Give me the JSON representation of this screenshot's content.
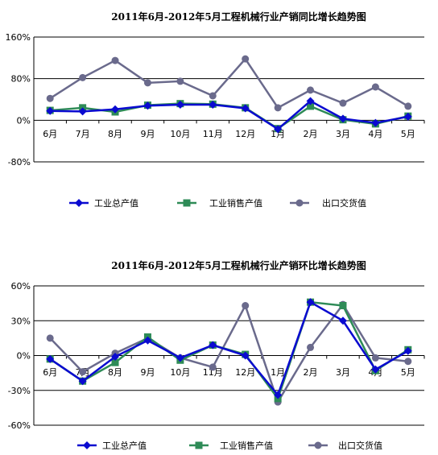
{
  "chart_data": [
    {
      "type": "line",
      "title": "2011年6月-2012年5月工程机械行业产销同比增长趋势图",
      "categories": [
        "6月",
        "7月",
        "8月",
        "9月",
        "10月",
        "11月",
        "12月",
        "1月",
        "2月",
        "3月",
        "4月",
        "5月"
      ],
      "ylim": [
        -80,
        160
      ],
      "yticks": [
        -80,
        0,
        80,
        160
      ],
      "ytick_labels": [
        "-80%",
        "0%",
        "80%",
        "160%"
      ],
      "grid": "horizontal",
      "legend_position": "bottom",
      "series": [
        {
          "name": "工业总产值",
          "color": "#0a0ad0",
          "marker": "diamond",
          "values": [
            18,
            17,
            21,
            28,
            30,
            30,
            23,
            -17,
            37,
            3,
            -5,
            7
          ]
        },
        {
          "name": "工业销售产值",
          "color": "#2e8b57",
          "marker": "square",
          "values": [
            19,
            24,
            16,
            29,
            32,
            31,
            24,
            -16,
            27,
            1,
            -7,
            8
          ]
        },
        {
          "name": "出口交货值",
          "color": "#6a6a8c",
          "marker": "circle",
          "values": [
            42,
            82,
            115,
            72,
            75,
            47,
            118,
            24,
            58,
            33,
            64,
            27
          ]
        }
      ]
    },
    {
      "type": "line",
      "title": "2011年6月-2012年5月工程机械行业产销环比增长趋势图",
      "categories": [
        "6月",
        "7月",
        "8月",
        "9月",
        "10月",
        "11月",
        "12月",
        "1月",
        "2月",
        "3月",
        "4月",
        "5月"
      ],
      "ylim": [
        -60,
        60
      ],
      "yticks": [
        -60,
        -30,
        0,
        30,
        60
      ],
      "ytick_labels": [
        "-60%",
        "-30%",
        "0%",
        "30%",
        "60%"
      ],
      "grid": "horizontal",
      "legend_position": "bottom",
      "series": [
        {
          "name": "工业总产值",
          "color": "#0a0ad0",
          "marker": "diamond",
          "values": [
            -3,
            -22,
            -1,
            13,
            -2,
            9,
            0,
            -34,
            46,
            30,
            -12,
            4
          ]
        },
        {
          "name": "工业销售产值",
          "color": "#2e8b57",
          "marker": "square",
          "values": [
            -3,
            -22,
            -6,
            16,
            -4,
            9,
            1,
            -37,
            46,
            43,
            -13,
            5
          ]
        },
        {
          "name": "出口交货值",
          "color": "#6a6a8c",
          "marker": "circle",
          "values": [
            15,
            -14,
            2,
            15,
            -2,
            -10,
            43,
            -40,
            7,
            44,
            -2,
            -5
          ]
        }
      ]
    }
  ]
}
